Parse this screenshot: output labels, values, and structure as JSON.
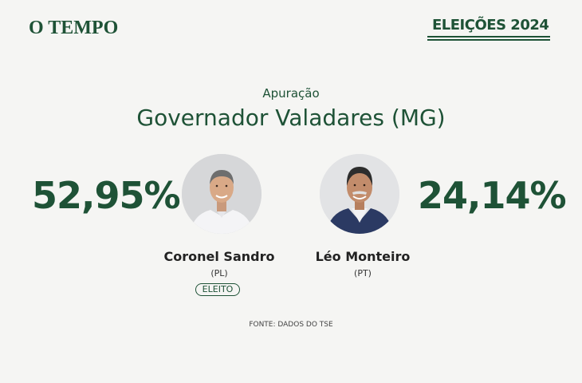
{
  "header": {
    "logo": "O TEMPO",
    "badge": "ELEIÇÕES 2024"
  },
  "main": {
    "subtitle": "Apuração",
    "title": "Governador Valadares (MG)",
    "source": "FONTE: DADOS DO TSE"
  },
  "candidates": [
    {
      "percent": "52,95%",
      "name": "Coronel Sandro",
      "party": "(PL)",
      "status": "ELEITO"
    },
    {
      "percent": "24,14%",
      "name": "Léo Monteiro",
      "party": "(PT)"
    }
  ],
  "colors": {
    "brand_green": "#1e5236",
    "background": "#f5f5f3"
  }
}
